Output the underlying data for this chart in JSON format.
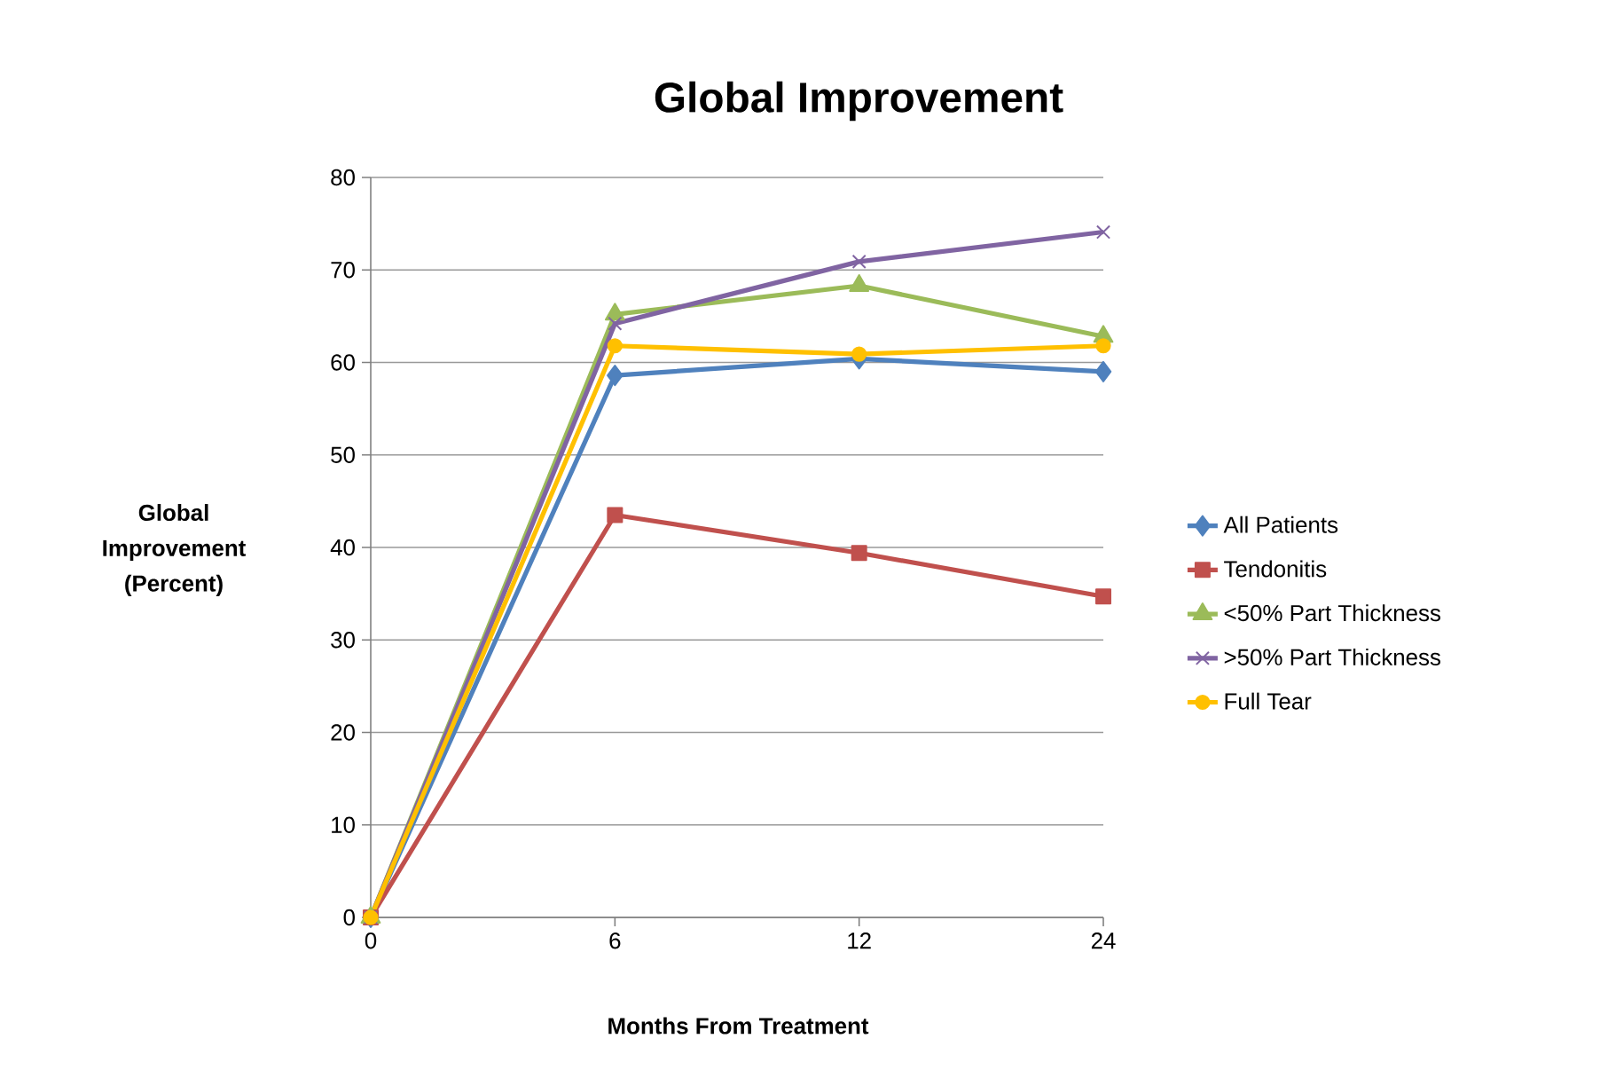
{
  "chart_data": {
    "type": "line",
    "title": "Global Improvement",
    "xlabel": "Months From Treatment",
    "ylabel": "Global Improvement (Percent)",
    "categories": [
      "0",
      "6",
      "12",
      "24"
    ],
    "ylim": [
      0,
      80
    ],
    "yticks": [
      0,
      10,
      20,
      30,
      40,
      50,
      60,
      70,
      80
    ],
    "grid": "y",
    "legend": "right",
    "line_style": "solid",
    "series": [
      {
        "name": "All Patients",
        "color": "#4f81bd",
        "marker": "diamond",
        "values": [
          0,
          58.6,
          60.4,
          59.0
        ]
      },
      {
        "name": "Tendonitis",
        "color": "#c0504d",
        "marker": "square",
        "values": [
          0,
          43.5,
          39.4,
          34.7
        ]
      },
      {
        "name": "<50% Part Thickness",
        "color": "#9bbb59",
        "marker": "triangle",
        "values": [
          0,
          65.2,
          68.3,
          62.8
        ]
      },
      {
        "name": ">50% Part Thickness",
        "color": "#8064a2",
        "marker": "cross",
        "values": [
          0,
          64.2,
          70.9,
          74.1
        ]
      },
      {
        "name": "Full Tear",
        "color": "#ffc000",
        "marker": "circle",
        "values": [
          0,
          61.8,
          60.9,
          61.8
        ]
      }
    ]
  }
}
